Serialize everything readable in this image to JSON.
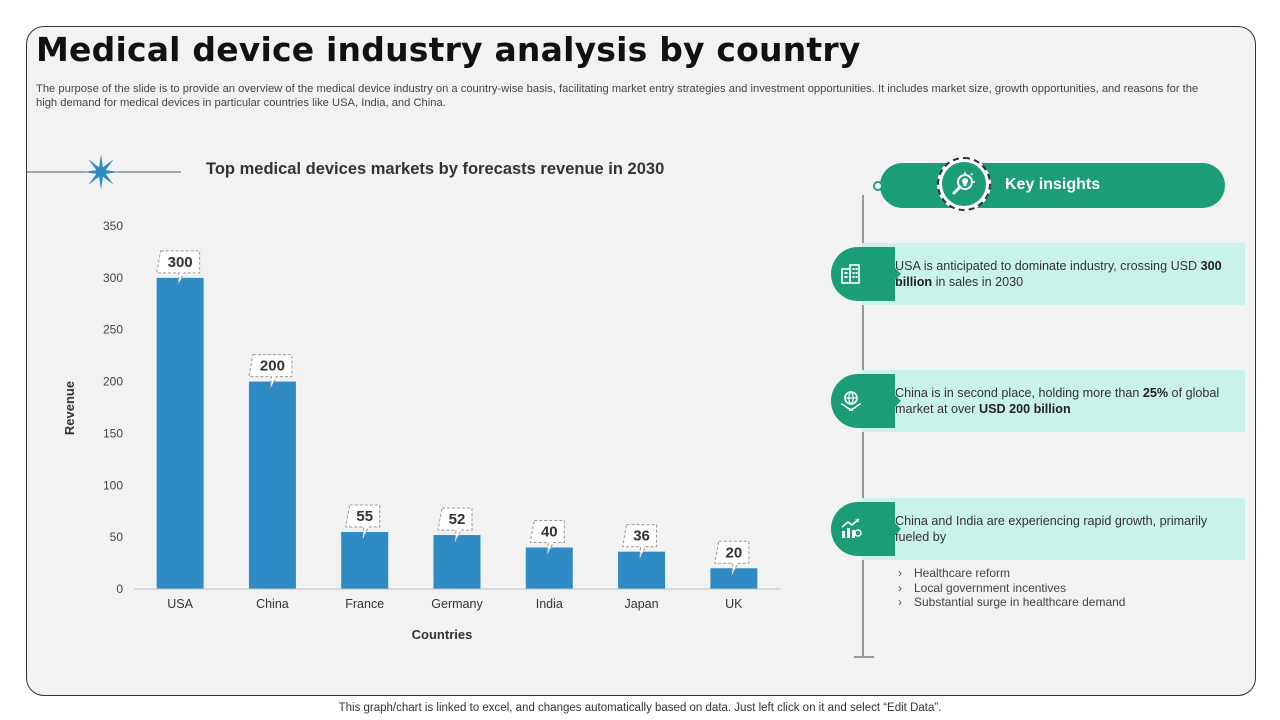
{
  "page": {
    "title": "Medical device industry analysis by country",
    "intro": "The purpose of the slide is to provide an overview of the medical device industry on a country-wise basis, facilitating market entry strategies and investment opportunities. It includes market size, growth opportunities, and reasons for the high demand for medical devices in particular countries like USA, India, and  China.",
    "footer": "This graph/chart is linked to excel, and changes automatically based on data. Just left click on it and select “Edit Data”."
  },
  "colors": {
    "bar": "#2e8bc4",
    "accent": "#1b9e78",
    "insight_bg": "#c9f2e8",
    "star": "#2e8bc4"
  },
  "chart_data": {
    "type": "bar",
    "title": "Top medical devices markets by forecasts revenue in 2030",
    "xlabel": "Countries",
    "ylabel": "Revenue",
    "categories": [
      "USA",
      "China",
      "France",
      "Germany",
      "India",
      "Japan",
      "UK"
    ],
    "values": [
      300,
      200,
      55,
      52,
      40,
      36,
      20
    ],
    "ylim": [
      0,
      350
    ],
    "yticks": [
      0,
      50,
      100,
      150,
      200,
      250,
      300,
      350
    ],
    "grid": false,
    "data_labels": true
  },
  "insights": {
    "title": "Key insights",
    "icon": "lightbulb-magnifier-icon",
    "items": [
      {
        "icon": "city-buildings-icon",
        "text_pre": "USA is anticipated to dominate industry, crossing USD ",
        "text_bold": "300 billion",
        "text_post": " in sales in 2030"
      },
      {
        "icon": "globe-hands-icon",
        "text_pre": "China is in second place, holding more than ",
        "text_bold": "25%",
        "text_mid": " of global market at over ",
        "text_bold2": "USD 200 billion"
      },
      {
        "icon": "growth-chart-icon",
        "text": "China and India are experiencing rapid growth, primarily fueled by"
      }
    ],
    "bullets": [
      "Healthcare reform",
      "Local government incentives",
      "Substantial surge in healthcare demand"
    ]
  }
}
